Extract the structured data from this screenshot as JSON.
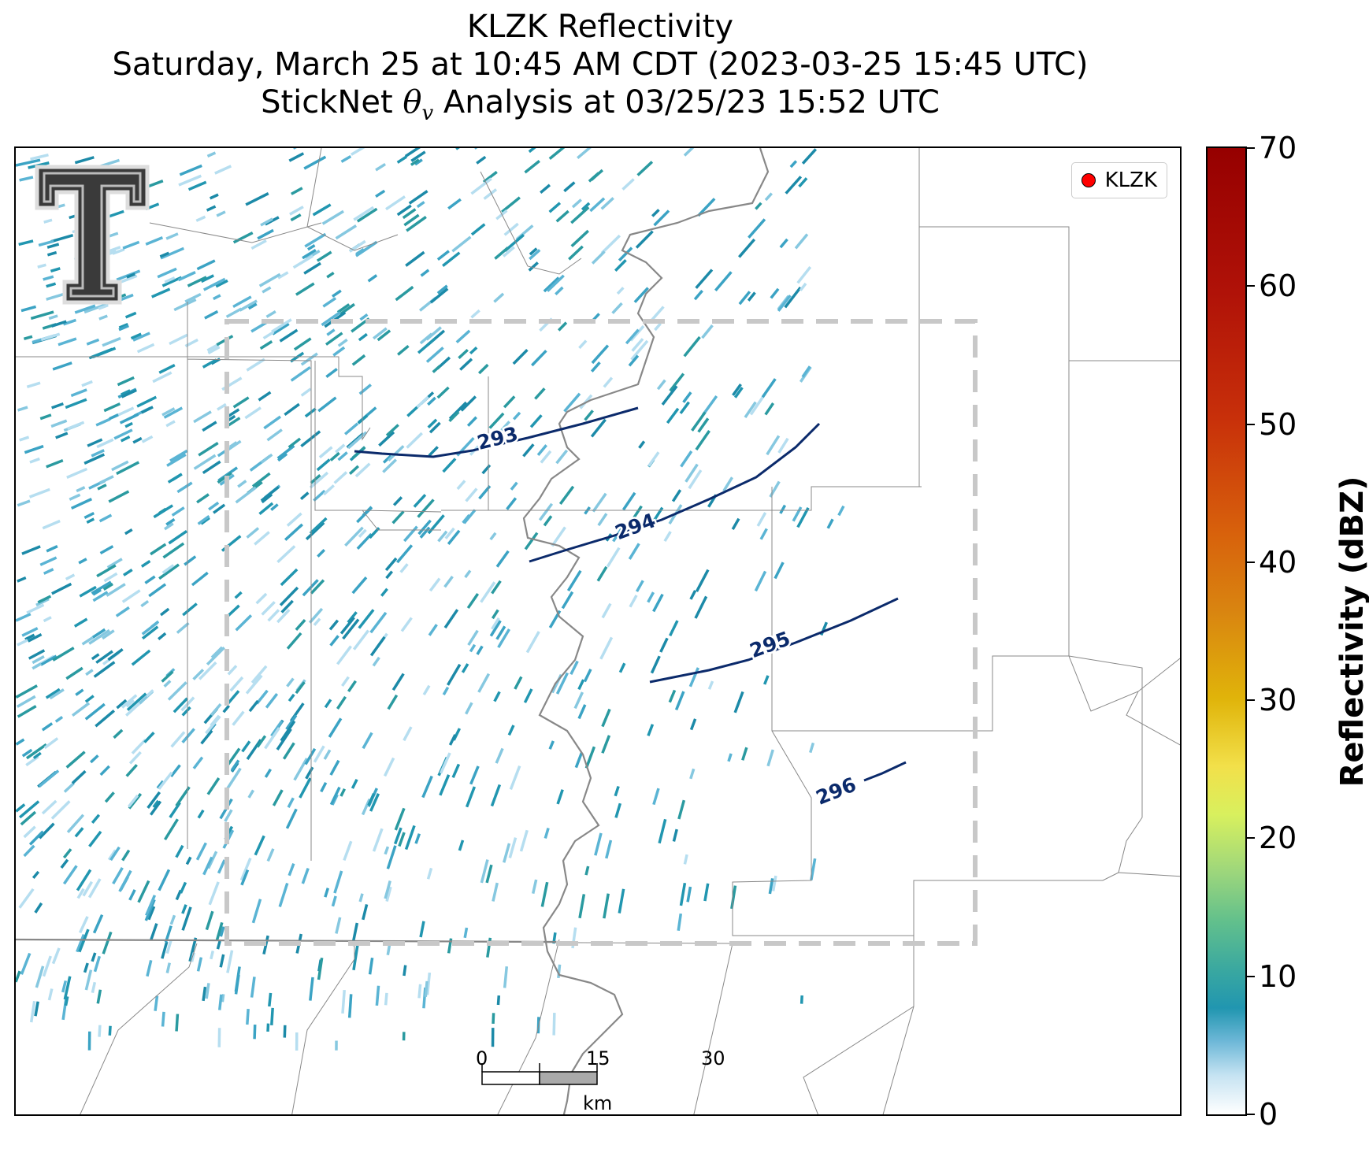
{
  "title": {
    "line1": "KLZK Reflectivity",
    "line2": "Saturday, March 25 at 10:45 AM CDT (2023-03-25 15:45 UTC)",
    "line3_prefix": "StickNet ",
    "line3_symbol": "θ",
    "line3_subscript": "v",
    "line3_suffix": " Analysis at 03/25/23 15:52 UTC"
  },
  "legend": {
    "label": "KLZK",
    "marker_color": "#ff0000"
  },
  "contours": [
    {
      "label": "293"
    },
    {
      "label": "294"
    },
    {
      "label": "295"
    },
    {
      "label": "296"
    }
  ],
  "contour_color": "#0b2a6b",
  "scalebar": {
    "ticks": [
      "0",
      "15",
      "30"
    ],
    "unit": "km"
  },
  "colorbar": {
    "title": "Reflectivity (dBZ)",
    "ticks": [
      "0",
      "10",
      "20",
      "30",
      "40",
      "50",
      "60",
      "70"
    ],
    "range": [
      0,
      70
    ]
  },
  "analysis_domain_color": "#c8c8c8",
  "logo_name": "texas-tech-double-t-logo"
}
